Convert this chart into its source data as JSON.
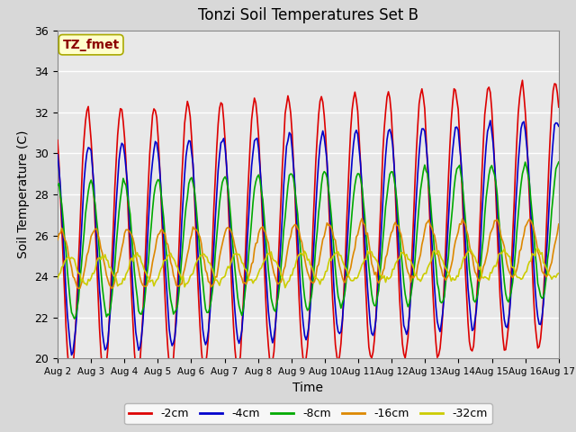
{
  "title": "Tonzi Soil Temperatures Set B",
  "xlabel": "Time",
  "ylabel": "Soil Temperature (C)",
  "ylim": [
    20,
    36
  ],
  "background_color": "#d8d8d8",
  "plot_bg_color": "#e8e8e8",
  "annotation_text": "TZ_fmet",
  "annotation_color": "#8B0000",
  "annotation_bg": "#ffffcc",
  "series": {
    "-2cm": {
      "color": "#dd0000",
      "lw": 1.2
    },
    "-4cm": {
      "color": "#0000cc",
      "lw": 1.2
    },
    "-8cm": {
      "color": "#00aa00",
      "lw": 1.2
    },
    "-16cm": {
      "color": "#dd8800",
      "lw": 1.2
    },
    "-32cm": {
      "color": "#cccc00",
      "lw": 1.2
    }
  },
  "xtick_labels": [
    "Aug 2",
    "Aug 3",
    "Aug 4",
    "Aug 5",
    "Aug 6",
    "Aug 7",
    "Aug 8",
    "Aug 9",
    "Aug 10",
    "Aug 11",
    "Aug 12",
    "Aug 13",
    "Aug 14",
    "Aug 15",
    "Aug 16",
    "Aug 17"
  ],
  "ytick_labels": [
    20,
    22,
    24,
    26,
    28,
    30,
    32,
    34,
    36
  ]
}
